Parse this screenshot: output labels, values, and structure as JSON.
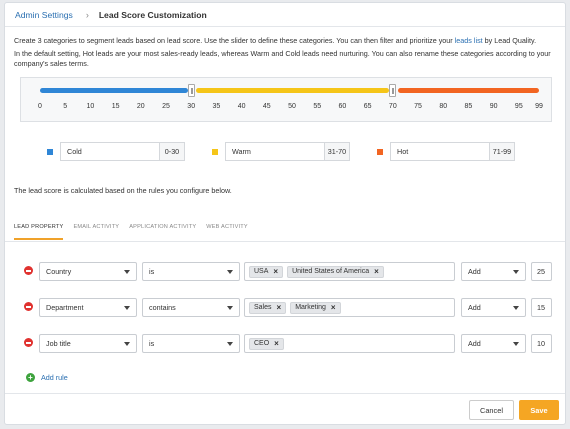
{
  "breadcrumb": {
    "parent": "Admin Settings",
    "current": "Lead Score Customization"
  },
  "intro": {
    "line1_pre": "Create 3 categories to segment leads based on lead score. Use the slider to define these categories. You can then filter and prioritize your ",
    "link": "leads list",
    "line1_post": " by Lead Quality.",
    "line2": "In the default setting, Hot leads are your most sales-ready leads, whereas Warm and Cold leads need nurturing. You can also rename these categories according to your company's sales terms."
  },
  "slider": {
    "min": 0,
    "max": 99,
    "handle1": 30,
    "handle2": 70,
    "ticks": [
      "0",
      "5",
      "10",
      "15",
      "20",
      "25",
      "30",
      "35",
      "40",
      "45",
      "50",
      "55",
      "60",
      "65",
      "70",
      "75",
      "80",
      "85",
      "90",
      "95",
      "99"
    ],
    "colors": {
      "cold": "#2f86d6",
      "warm": "#f5c518",
      "hot": "#f26522"
    }
  },
  "categories": [
    {
      "name": "Cold",
      "range": "0-30",
      "color": "#2f86d6"
    },
    {
      "name": "Warm",
      "range": "31-70",
      "color": "#f5c518"
    },
    {
      "name": "Hot",
      "range": "71-99",
      "color": "#f26522"
    }
  ],
  "rules_note": "The lead score is calculated based on the rules you configure below.",
  "tabs": [
    "LEAD PROPERTY",
    "EMAIL ACTIVITY",
    "APPLICATION ACTIVITY",
    "WEB ACTIVITY"
  ],
  "rules": [
    {
      "field": "Country",
      "operator": "is",
      "tags": [
        "USA",
        "United States of America"
      ],
      "action": "Add",
      "points": "25"
    },
    {
      "field": "Department",
      "operator": "contains",
      "tags": [
        "Sales",
        "Marketing"
      ],
      "action": "Add",
      "points": "15"
    },
    {
      "field": "Job title",
      "operator": "is",
      "tags": [
        "CEO"
      ],
      "action": "Add",
      "points": "10"
    }
  ],
  "add_rule_label": "Add rule",
  "buttons": {
    "cancel": "Cancel",
    "save": "Save"
  }
}
